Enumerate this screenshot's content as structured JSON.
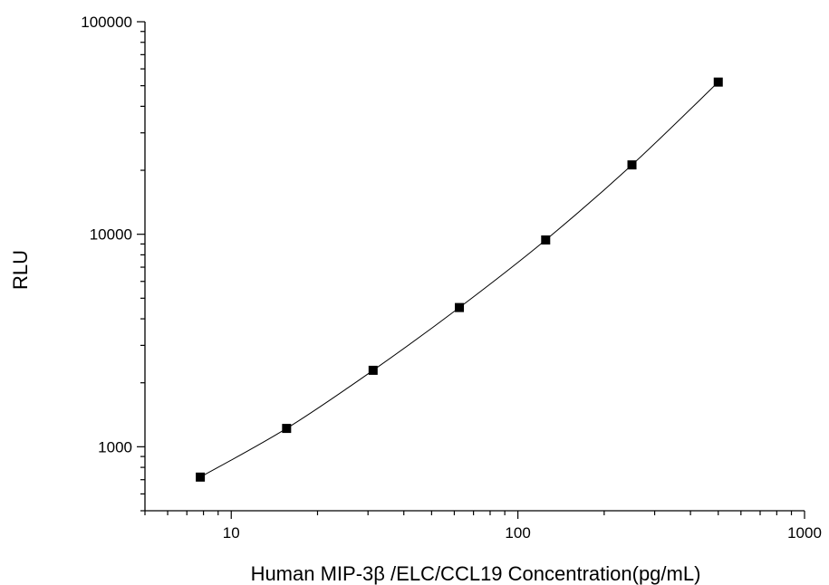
{
  "chart_data": {
    "type": "scatter",
    "title": "",
    "xlabel": "Human  MIP-3β /ELC/CCL19  Concentration(pg/mL)",
    "ylabel": "RLU",
    "xscale": "log",
    "yscale": "log",
    "xlim": [
      5,
      1000
    ],
    "ylim": [
      500,
      100000
    ],
    "xticks": [
      {
        "value": 10,
        "label": "10"
      },
      {
        "value": 100,
        "label": "100"
      },
      {
        "value": 1000,
        "label": "1000"
      }
    ],
    "yticks": [
      {
        "value": 1000,
        "label": "1000"
      },
      {
        "value": 10000,
        "label": "10000"
      },
      {
        "value": 100000,
        "label": "100000"
      }
    ],
    "grid": false,
    "legend": "none",
    "marker": "square",
    "marker_color": "#000000",
    "line_color": "#000000",
    "fit_line": true,
    "series": [
      {
        "points": [
          {
            "x": 7.8,
            "y": 720
          },
          {
            "x": 15.6,
            "y": 1220
          },
          {
            "x": 31.25,
            "y": 2290
          },
          {
            "x": 62.5,
            "y": 4520
          },
          {
            "x": 125,
            "y": 9400
          },
          {
            "x": 250,
            "y": 21200
          },
          {
            "x": 500,
            "y": 52000
          }
        ]
      }
    ]
  }
}
